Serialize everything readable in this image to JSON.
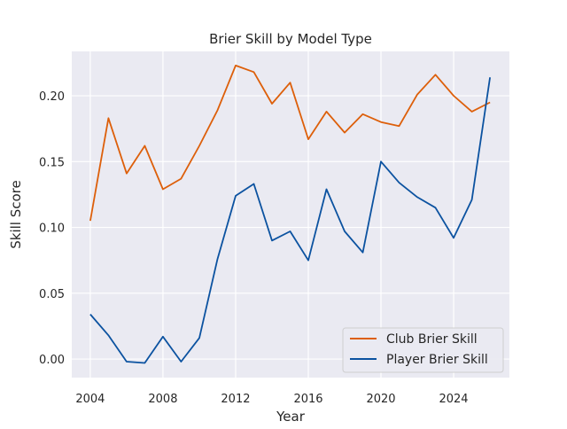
{
  "chart_data": {
    "type": "line",
    "title": "Brier Skill by Model Type",
    "xlabel": "Year",
    "ylabel": "Skill Score",
    "xlim": [
      2002.98,
      2027.07
    ],
    "ylim": [
      -0.0141,
      0.2337
    ],
    "xticks": [
      2004,
      2008,
      2012,
      2016,
      2020,
      2024
    ],
    "xtick_labels": [
      "2004",
      "2008",
      "2012",
      "2016",
      "2020",
      "2024"
    ],
    "yticks": [
      0.0,
      0.05,
      0.1,
      0.15,
      0.2
    ],
    "ytick_labels": [
      "0.00",
      "0.05",
      "0.10",
      "0.15",
      "0.20"
    ],
    "grid": true,
    "legend_position": "lower-right",
    "x": [
      2004,
      2005,
      2006,
      2007,
      2008,
      2009,
      2010,
      2011,
      2012,
      2013,
      2014,
      2015,
      2016,
      2017,
      2018,
      2019,
      2020,
      2021,
      2022,
      2023,
      2024,
      2025,
      2026
    ],
    "series": [
      {
        "name": "Club Brier Skill",
        "color": "#dd5f0a",
        "values": [
          0.105,
          0.183,
          0.141,
          0.162,
          0.129,
          0.137,
          0.162,
          0.189,
          0.223,
          0.218,
          0.194,
          0.21,
          0.167,
          0.188,
          0.172,
          0.186,
          0.18,
          0.177,
          0.201,
          0.216,
          0.2,
          0.188,
          0.195
        ]
      },
      {
        "name": "Player Brier Skill",
        "color": "#0b52a0",
        "values": [
          0.034,
          0.018,
          -0.002,
          -0.003,
          0.017,
          -0.002,
          0.016,
          0.076,
          0.124,
          0.133,
          0.09,
          0.097,
          0.075,
          0.129,
          0.097,
          0.081,
          0.15,
          0.134,
          0.123,
          0.115,
          0.092,
          0.121,
          0.214
        ]
      }
    ]
  }
}
